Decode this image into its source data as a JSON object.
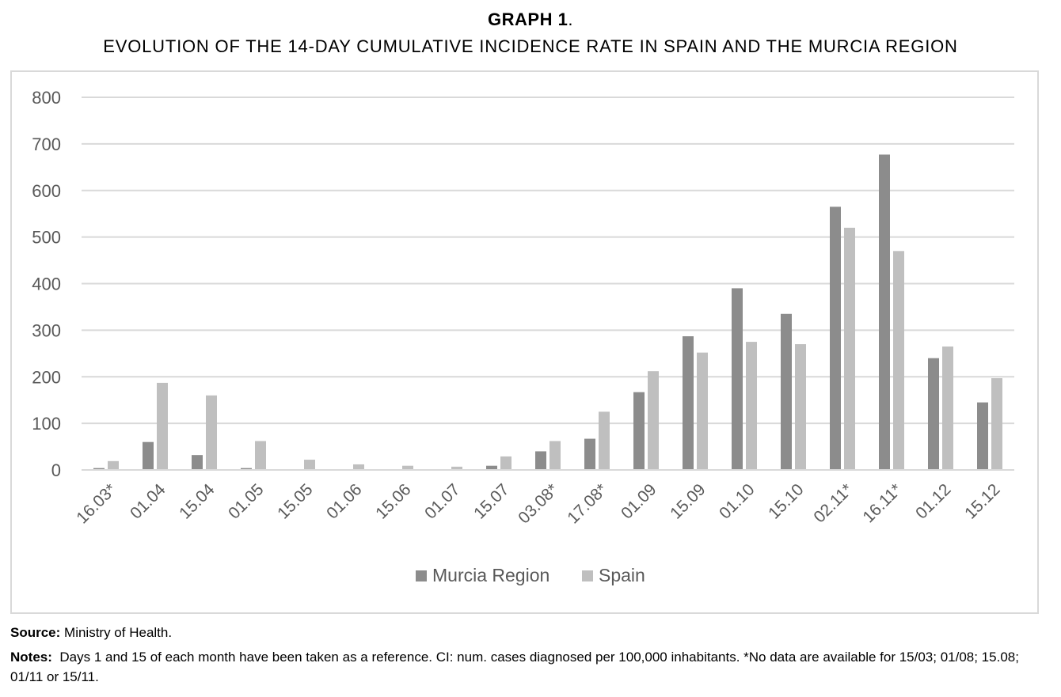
{
  "heading": "GRAPH 1",
  "heading_suffix": ".",
  "title": "EVOLUTION OF THE 14-DAY CUMULATIVE INCIDENCE RATE IN SPAIN AND THE MURCIA REGION",
  "source": {
    "label": "Source:",
    "text": "Ministry of Health."
  },
  "notes": {
    "label": "Notes:",
    "text": "Days 1 and 15 of each month have been taken as a reference. CI: num. cases diagnosed per 100,000 inhabitants. *No data are available for 15/03; 01/08; 15.08; 01/11 or 15/11."
  },
  "colors": {
    "murcia": "#8c8c8c",
    "spain": "#bfbfbf",
    "grid": "#d9d9d9",
    "axis_text": "#595959"
  },
  "chart_data": {
    "type": "bar",
    "categories": [
      "16.03*",
      "01.04",
      "15.04",
      "01.05",
      "15.05",
      "01.06",
      "15.06",
      "01.07",
      "15.07",
      "03.08*",
      "17.08*",
      "01.09",
      "15.09",
      "01.10",
      "15.10",
      "02.11*",
      "16.11*",
      "01.12",
      "15.12"
    ],
    "series": [
      {
        "name": "Murcia Region",
        "values": [
          4,
          60,
          32,
          4,
          0,
          0,
          0,
          0,
          9,
          40,
          67,
          167,
          287,
          390,
          335,
          565,
          677,
          240,
          145
        ]
      },
      {
        "name": "Spain",
        "values": [
          19,
          187,
          160,
          62,
          22,
          12,
          9,
          7,
          29,
          62,
          125,
          212,
          252,
          275,
          270,
          520,
          470,
          265,
          197
        ]
      }
    ],
    "ylim": [
      0,
      800
    ],
    "yticks": [
      0,
      100,
      200,
      300,
      400,
      500,
      600,
      700,
      800
    ],
    "grid": true,
    "legend": "bottom"
  }
}
